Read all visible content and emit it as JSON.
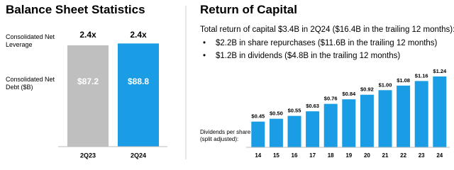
{
  "chart_data": [
    {
      "type": "bar",
      "title": "Balance Sheet Statistics",
      "row_labels": [
        "Consolidated Net Leverage",
        "Consolidated Net Debt ($B)"
      ],
      "categories": [
        "2Q23",
        "2Q24"
      ],
      "leverage": {
        "values": [
          2.4,
          2.4
        ],
        "value_labels": [
          "2.4x",
          "2.4x"
        ]
      },
      "values": [
        87.2,
        88.8
      ],
      "value_labels": [
        "$87.2",
        "$88.8"
      ],
      "colors": [
        "#bfbfbf",
        "#1a9de4"
      ],
      "ylim": [
        0,
        100
      ]
    },
    {
      "type": "bar",
      "title": "Return of Capital",
      "summary": "Total return of capital $3.4B in 2Q24 ($16.4B in the trailing 12 months):",
      "bullets": [
        "$2.2B in share repurchases ($11.6B in the trailing 12 months)",
        "$1.2B in dividends ($4.8B in the trailing 12 months)"
      ],
      "ylabel": "Dividends per share (split adjusted):",
      "categories": [
        "14",
        "15",
        "16",
        "17",
        "18",
        "19",
        "20",
        "21",
        "22",
        "23",
        "24"
      ],
      "values": [
        0.45,
        0.5,
        0.55,
        0.63,
        0.76,
        0.84,
        0.92,
        1.0,
        1.08,
        1.16,
        1.24
      ],
      "value_labels": [
        "$0.45",
        "$0.50",
        "$0.55",
        "$0.63",
        "$0.76",
        "$0.84",
        "$0.92",
        "$1.00",
        "$1.08",
        "$1.16",
        "$1.24"
      ],
      "color": "#1a9de4",
      "ylim": [
        0,
        1.4
      ]
    }
  ]
}
